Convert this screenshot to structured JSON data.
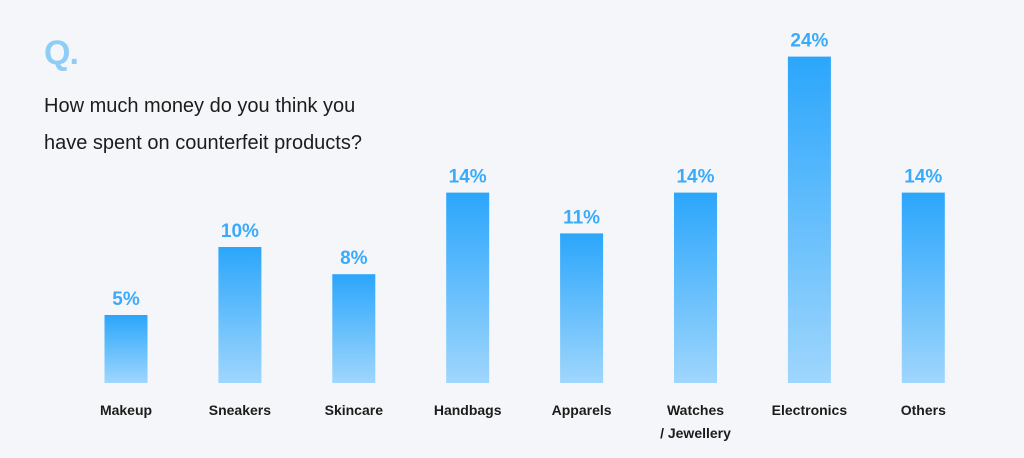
{
  "header": {
    "q_mark": "Q.",
    "question_line1": "How much money do you think you",
    "question_line2": "have spent on counterfeit products?"
  },
  "colors": {
    "bar_top": "#2ba6fb",
    "bar_bottom": "#9fd6fd",
    "value_label": "#3aabfb",
    "category_label": "#1c1c1c",
    "q_mark": "#8ecdf6",
    "background": "#f5f6f9"
  },
  "chart_data": {
    "type": "bar",
    "title": "",
    "xlabel": "",
    "ylabel": "",
    "ylim": [
      0,
      24
    ],
    "grid": false,
    "categories": [
      [
        "Makeup"
      ],
      [
        "Sneakers"
      ],
      [
        "Skincare"
      ],
      [
        "Handbags"
      ],
      [
        "Apparels"
      ],
      [
        "Watches",
        "/ Jewellery"
      ],
      [
        "Electronics"
      ],
      [
        "Others"
      ]
    ],
    "values": [
      5,
      10,
      8,
      14,
      11,
      14,
      24,
      14
    ],
    "value_labels": [
      "5%",
      "10%",
      "8%",
      "14%",
      "11%",
      "14%",
      "24%",
      "14%"
    ]
  }
}
